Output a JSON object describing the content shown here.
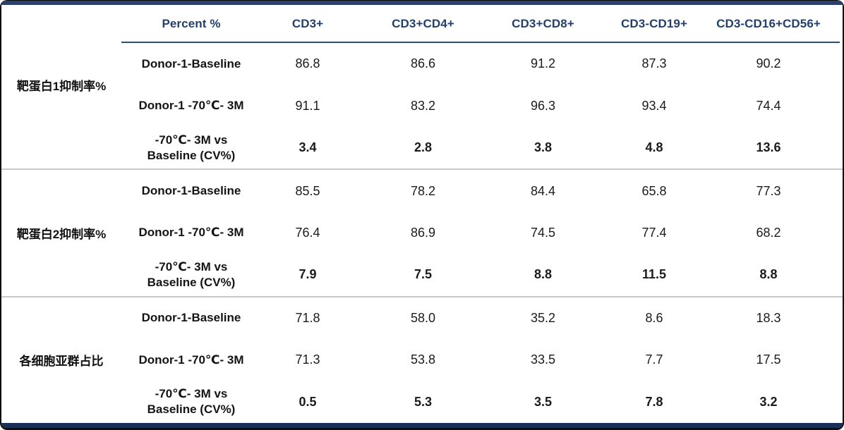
{
  "chart_data": {
    "type": "table",
    "header": {
      "row_label_column": "Percent %",
      "value_columns": [
        "CD3+",
        "CD3+CD4+",
        "CD3+CD8+",
        "CD3-CD19+",
        "CD3-CD16+CD56+"
      ]
    },
    "groups": [
      {
        "label": "靶蛋白1抑制率%",
        "rows": [
          {
            "label": "Donor-1-Baseline",
            "values": [
              "86.8",
              "86.6",
              "91.2",
              "87.3",
              "90.2"
            ],
            "emphasis": false
          },
          {
            "label": "Donor-1 -70℃- 3M",
            "values": [
              "91.1",
              "83.2",
              "96.3",
              "93.4",
              "74.4"
            ],
            "emphasis": false
          },
          {
            "label_line1": "-70℃- 3M vs",
            "label_line2": "Baseline (CV%)",
            "values": [
              "3.4",
              "2.8",
              "3.8",
              "4.8",
              "13.6"
            ],
            "emphasis": true
          }
        ]
      },
      {
        "label": "靶蛋白2抑制率%",
        "rows": [
          {
            "label": "Donor-1-Baseline",
            "values": [
              "85.5",
              "78.2",
              "84.4",
              "65.8",
              "77.3"
            ],
            "emphasis": false
          },
          {
            "label": "Donor-1 -70℃- 3M",
            "values": [
              "76.4",
              "86.9",
              "74.5",
              "77.4",
              "68.2"
            ],
            "emphasis": false
          },
          {
            "label_line1": "-70℃- 3M vs",
            "label_line2": "Baseline (CV%)",
            "values": [
              "7.9",
              "7.5",
              "8.8",
              "11.5",
              "8.8"
            ],
            "emphasis": true
          }
        ]
      },
      {
        "label": "各细胞亚群占比",
        "rows": [
          {
            "label": "Donor-1-Baseline",
            "values": [
              "71.8",
              "58.0",
              "35.2",
              "8.6",
              "18.3"
            ],
            "emphasis": false
          },
          {
            "label": "Donor-1 -70℃- 3M",
            "values": [
              "71.3",
              "53.8",
              "33.5",
              "7.7",
              "17.5"
            ],
            "emphasis": false
          },
          {
            "label_line1": "-70℃- 3M vs",
            "label_line2": "Baseline (CV%)",
            "values": [
              "0.5",
              "5.3",
              "3.5",
              "7.8",
              "3.2"
            ],
            "emphasis": true
          }
        ]
      }
    ],
    "layout": {
      "grid": "horizontal dividers between row groups only",
      "header_rule": "navy line under header spanning value columns"
    }
  },
  "colors": {
    "top_bar": "#2a416d",
    "bottom_bar": "#1a2f58",
    "header_text": "#23406d",
    "header_rule": "#2e4a7a",
    "group_divider": "#c8c8c8",
    "body_text": "#1b1b1b",
    "frame": "#0d0d0d"
  }
}
